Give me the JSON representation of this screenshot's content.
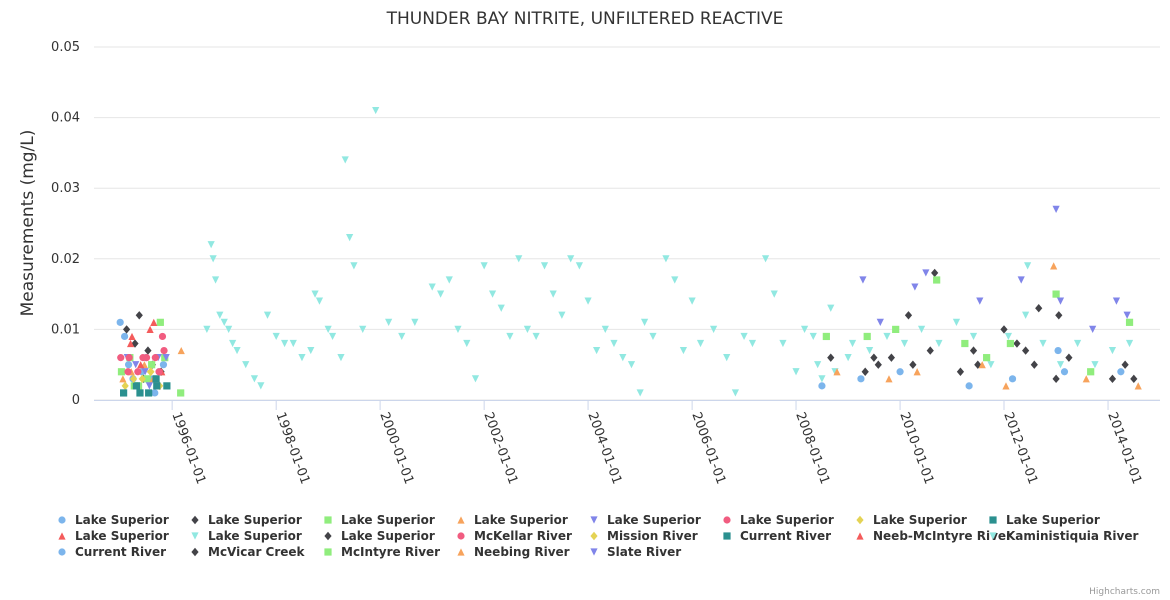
{
  "chart_data": {
    "type": "scatter",
    "title": "THUNDER BAY NITRITE, UNFILTERED REACTIVE",
    "ylabel": "Measurements (mg/L)",
    "xlabel": "",
    "ylim": [
      0,
      0.05
    ],
    "xlim": [
      "1994-07-01",
      "2015-01-01"
    ],
    "yticks": [
      "0",
      "0.01",
      "0.02",
      "0.03",
      "0.04",
      "0.05"
    ],
    "yticks_values": [
      0,
      0.01,
      0.02,
      0.03,
      0.04,
      0.05
    ],
    "xticks": [
      "1996-01-01",
      "1998-01-01",
      "2000-01-01",
      "2002-01-01",
      "2004-01-01",
      "2006-01-01",
      "2008-01-01",
      "2010-01-01",
      "2012-01-01",
      "2014-01-01"
    ],
    "grid": true,
    "legend_position": "bottom",
    "credit": "Highcharts.com",
    "series": [
      {
        "name": "Lake Superior",
        "color": "#7cb5ec",
        "marker": "circle",
        "points": [
          [
            "1995-01-01",
            0.011
          ],
          [
            "1995-02-01",
            0.009
          ],
          [
            "1995-03-01",
            0.005
          ],
          [
            "1995-04-01",
            0.003
          ],
          [
            "1995-05-01",
            0.002
          ],
          [
            "1995-06-01",
            0.004
          ],
          [
            "1995-07-01",
            0.006
          ],
          [
            "1995-08-01",
            0.003
          ],
          [
            "1995-09-01",
            0.001
          ],
          [
            "1995-10-01",
            0.004
          ],
          [
            "1995-11-01",
            0.005
          ]
        ]
      },
      {
        "name": "Lake Superior",
        "color": "#434348",
        "marker": "diamond",
        "points": [
          [
            "1995-02-15",
            0.01
          ],
          [
            "1995-04-15",
            0.008
          ],
          [
            "1995-05-15",
            0.012
          ],
          [
            "1995-07-15",
            0.007
          ],
          [
            "1995-08-15",
            0.005
          ],
          [
            "1995-10-15",
            0.004
          ],
          [
            "1995-06-15",
            0.003
          ]
        ]
      },
      {
        "name": "Lake Superior",
        "color": "#90ed7d",
        "marker": "square",
        "points": [
          [
            "1995-01-10",
            0.004
          ],
          [
            "1995-03-10",
            0.006
          ],
          [
            "1995-05-10",
            0.002
          ],
          [
            "1995-07-10",
            0.003
          ],
          [
            "1995-08-10",
            0.005
          ],
          [
            "1995-10-10",
            0.011
          ],
          [
            "1995-11-10",
            0.006
          ],
          [
            "1996-03-01",
            0.001
          ],
          [
            "1995-04-10",
            0.002
          ]
        ]
      },
      {
        "name": "Lake Superior",
        "color": "#f7a35c",
        "marker": "triangle",
        "points": [
          [
            "1995-01-20",
            0.003
          ],
          [
            "1995-03-20",
            0.004
          ],
          [
            "1995-06-20",
            0.005
          ],
          [
            "1995-09-20",
            0.002
          ],
          [
            "1996-03-05",
            0.007
          ],
          [
            "1995-08-20",
            0.003
          ]
        ]
      },
      {
        "name": "Lake Superior",
        "color": "#8085e9",
        "marker": "triangle-down",
        "points": [
          [
            "1995-02-20",
            0.006
          ],
          [
            "1995-04-20",
            0.005
          ],
          [
            "1995-06-25",
            0.004
          ],
          [
            "1995-09-25",
            0.006
          ],
          [
            "1995-11-20",
            0.006
          ],
          [
            "1995-07-25",
            0.002
          ]
        ]
      },
      {
        "name": "Lake Superior",
        "color": "#f15c80",
        "marker": "circle",
        "points": [
          [
            "1995-01-05",
            0.006
          ],
          [
            "1995-03-05",
            0.006
          ],
          [
            "1995-05-05",
            0.004
          ],
          [
            "1995-07-05",
            0.006
          ],
          [
            "1995-09-05",
            0.006
          ],
          [
            "1995-11-05",
            0.007
          ],
          [
            "1995-10-25",
            0.009
          ]
        ]
      },
      {
        "name": "Lake Superior",
        "color": "#e4d354",
        "marker": "diamond",
        "points": [
          [
            "1995-02-05",
            0.002
          ],
          [
            "1995-06-05",
            0.003
          ],
          [
            "1995-08-05",
            0.004
          ],
          [
            "1995-10-05",
            0.002
          ]
        ]
      },
      {
        "name": "Lake Superior",
        "color": "#2b908f",
        "marker": "square",
        "points": [
          [
            "1995-01-25",
            0.001
          ],
          [
            "1995-04-25",
            0.002
          ],
          [
            "1995-07-20",
            0.001
          ],
          [
            "1995-09-10",
            0.003
          ],
          [
            "1995-11-25",
            0.002
          ]
        ]
      },
      {
        "name": "Lake Superior",
        "color": "#f45b5b",
        "marker": "triangle",
        "points": [
          [
            "1995-03-25",
            0.009
          ],
          [
            "1995-05-25",
            0.005
          ],
          [
            "1995-08-25",
            0.011
          ],
          [
            "1995-10-20",
            0.004
          ]
        ]
      },
      {
        "name": "Lake Superior",
        "color": "#91e8e1",
        "marker": "triangle-down",
        "points": [
          [
            "1996-09-01",
            0.01
          ],
          [
            "1996-10-01",
            0.022
          ],
          [
            "1996-10-15",
            0.02
          ],
          [
            "1996-11-01",
            0.017
          ],
          [
            "1996-12-01",
            0.012
          ],
          [
            "1997-01-01",
            0.011
          ],
          [
            "1997-02-01",
            0.01
          ],
          [
            "1997-03-01",
            0.008
          ],
          [
            "1997-04-01",
            0.007
          ],
          [
            "1997-06-01",
            0.005
          ],
          [
            "1997-08-01",
            0.003
          ],
          [
            "1997-09-15",
            0.002
          ],
          [
            "1997-11-01",
            0.012
          ],
          [
            "1998-01-01",
            0.009
          ],
          [
            "1998-03-01",
            0.008
          ],
          [
            "1998-05-01",
            0.008
          ],
          [
            "1998-07-01",
            0.006
          ],
          [
            "1998-09-01",
            0.007
          ],
          [
            "1998-10-01",
            0.015
          ],
          [
            "1998-11-01",
            0.014
          ],
          [
            "1999-01-01",
            0.01
          ],
          [
            "1999-02-01",
            0.009
          ],
          [
            "1999-04-01",
            0.006
          ],
          [
            "1999-05-01",
            0.034
          ],
          [
            "1999-06-01",
            0.023
          ],
          [
            "1999-07-01",
            0.019
          ],
          [
            "1999-09-01",
            0.01
          ],
          [
            "1999-12-01",
            0.041
          ],
          [
            "2000-03-01",
            0.011
          ],
          [
            "2000-06-01",
            0.009
          ],
          [
            "2000-09-01",
            0.011
          ],
          [
            "2001-01-01",
            0.016
          ],
          [
            "2001-03-01",
            0.015
          ],
          [
            "2001-05-01",
            0.017
          ],
          [
            "2001-07-01",
            0.01
          ],
          [
            "2001-09-01",
            0.008
          ],
          [
            "2001-11-01",
            0.003
          ],
          [
            "2002-01-01",
            0.019
          ],
          [
            "2002-03-01",
            0.015
          ],
          [
            "2002-05-01",
            0.013
          ],
          [
            "2002-07-01",
            0.009
          ],
          [
            "2002-09-01",
            0.02
          ],
          [
            "2002-11-01",
            0.01
          ],
          [
            "2003-01-01",
            0.009
          ],
          [
            "2003-03-01",
            0.019
          ],
          [
            "2003-05-01",
            0.015
          ],
          [
            "2003-07-01",
            0.012
          ],
          [
            "2003-09-01",
            0.02
          ],
          [
            "2003-11-01",
            0.019
          ],
          [
            "2004-01-01",
            0.014
          ],
          [
            "2004-03-01",
            0.007
          ],
          [
            "2004-05-01",
            0.01
          ],
          [
            "2004-07-01",
            0.008
          ],
          [
            "2004-09-01",
            0.006
          ],
          [
            "2004-11-01",
            0.005
          ],
          [
            "2005-01-01",
            0.001
          ],
          [
            "2005-02-01",
            0.011
          ],
          [
            "2005-04-01",
            0.009
          ],
          [
            "2005-07-01",
            0.02
          ],
          [
            "2005-09-01",
            0.017
          ],
          [
            "2005-11-01",
            0.007
          ],
          [
            "2006-01-01",
            0.014
          ],
          [
            "2006-03-01",
            0.008
          ],
          [
            "2006-06-01",
            0.01
          ],
          [
            "2006-09-01",
            0.006
          ],
          [
            "2006-11-01",
            0.001
          ],
          [
            "2007-01-01",
            0.009
          ],
          [
            "2007-03-01",
            0.008
          ],
          [
            "2007-06-01",
            0.02
          ],
          [
            "2007-08-01",
            0.015
          ],
          [
            "2007-10-01",
            0.008
          ],
          [
            "2008-01-01",
            0.004
          ],
          [
            "2008-03-01",
            0.01
          ],
          [
            "2008-05-01",
            0.009
          ],
          [
            "2008-07-01",
            0.003
          ],
          [
            "2008-09-01",
            0.013
          ],
          [
            "2009-01-01",
            0.006
          ]
        ]
      },
      {
        "name": "Lake Superior",
        "color": "#434348",
        "marker": "diamond",
        "points": [
          [
            "2009-05-01",
            0.004
          ],
          [
            "2009-08-01",
            0.005
          ],
          [
            "2009-11-01",
            0.006
          ],
          [
            "2010-04-01",
            0.005
          ],
          [
            "2010-08-01",
            0.007
          ],
          [
            "2011-03-01",
            0.004
          ],
          [
            "2011-06-01",
            0.007
          ],
          [
            "2012-01-01",
            0.01
          ],
          [
            "2012-04-01",
            0.008
          ],
          [
            "2012-08-01",
            0.005
          ],
          [
            "2013-01-01",
            0.003
          ],
          [
            "2013-04-01",
            0.006
          ],
          [
            "2014-02-01",
            0.003
          ],
          [
            "2014-07-01",
            0.003
          ],
          [
            "2010-09-01",
            0.018
          ],
          [
            "2012-09-01",
            0.013
          ]
        ]
      },
      {
        "name": "McKellar River",
        "color": "#f15c80",
        "marker": "circle",
        "points": [
          [
            "1995-02-25",
            0.004
          ],
          [
            "1995-06-10",
            0.006
          ],
          [
            "1995-10-01",
            0.004
          ]
        ]
      },
      {
        "name": "Mission River",
        "color": "#e4d354",
        "marker": "diamond",
        "points": [
          [
            "1995-04-05",
            0.003
          ],
          [
            "1995-08-01",
            0.004
          ]
        ]
      },
      {
        "name": "Current River",
        "color": "#2b908f",
        "marker": "square",
        "points": [
          [
            "1995-05-20",
            0.001
          ],
          [
            "1995-09-15",
            0.002
          ]
        ]
      },
      {
        "name": "Neeb-McIntyre River",
        "color": "#f45b5b",
        "marker": "triangle",
        "points": [
          [
            "1995-03-15",
            0.008
          ],
          [
            "1995-07-30",
            0.01
          ]
        ]
      },
      {
        "name": "Kaministiquia River",
        "color": "#91e8e1",
        "marker": "triangle-down",
        "points": [
          [
            "2008-06-01",
            0.005
          ],
          [
            "2008-10-01",
            0.004
          ],
          [
            "2009-02-01",
            0.008
          ],
          [
            "2009-06-01",
            0.007
          ],
          [
            "2009-10-01",
            0.009
          ],
          [
            "2010-02-01",
            0.008
          ],
          [
            "2010-06-01",
            0.01
          ],
          [
            "2010-10-01",
            0.008
          ],
          [
            "2011-02-01",
            0.011
          ],
          [
            "2011-06-01",
            0.009
          ],
          [
            "2011-10-01",
            0.005
          ],
          [
            "2012-02-01",
            0.009
          ],
          [
            "2012-06-01",
            0.012
          ],
          [
            "2012-10-01",
            0.008
          ],
          [
            "2013-02-01",
            0.005
          ],
          [
            "2013-06-01",
            0.008
          ],
          [
            "2013-10-01",
            0.005
          ],
          [
            "2014-02-01",
            0.007
          ],
          [
            "2014-06-01",
            0.008
          ],
          [
            "2012-06-15",
            0.019
          ]
        ]
      },
      {
        "name": "Current River",
        "color": "#7cb5ec",
        "marker": "circle",
        "points": [
          [
            "2008-07-01",
            0.002
          ],
          [
            "2009-04-01",
            0.003
          ],
          [
            "2010-01-01",
            0.004
          ],
          [
            "2011-05-01",
            0.002
          ],
          [
            "2012-03-01",
            0.003
          ],
          [
            "2013-03-01",
            0.004
          ],
          [
            "2014-04-01",
            0.004
          ],
          [
            "2013-01-15",
            0.007
          ]
        ]
      },
      {
        "name": "McVicar Creek",
        "color": "#434348",
        "marker": "diamond",
        "points": [
          [
            "2008-09-01",
            0.006
          ],
          [
            "2009-07-01",
            0.006
          ],
          [
            "2010-03-01",
            0.012
          ],
          [
            "2011-07-01",
            0.005
          ],
          [
            "2012-06-01",
            0.007
          ],
          [
            "2013-01-20",
            0.012
          ],
          [
            "2014-05-01",
            0.005
          ]
        ]
      },
      {
        "name": "McIntyre River",
        "color": "#90ed7d",
        "marker": "square",
        "points": [
          [
            "2008-08-01",
            0.009
          ],
          [
            "2009-05-15",
            0.009
          ],
          [
            "2009-12-01",
            0.01
          ],
          [
            "2010-09-15",
            0.017
          ],
          [
            "2011-04-01",
            0.008
          ],
          [
            "2012-02-15",
            0.008
          ],
          [
            "2013-01-01",
            0.015
          ],
          [
            "2013-09-01",
            0.004
          ],
          [
            "2014-06-01",
            0.011
          ],
          [
            "2011-09-01",
            0.006
          ]
        ]
      },
      {
        "name": "Neebing River",
        "color": "#f7a35c",
        "marker": "triangle",
        "points": [
          [
            "2008-10-15",
            0.004
          ],
          [
            "2009-10-15",
            0.003
          ],
          [
            "2010-05-01",
            0.004
          ],
          [
            "2011-08-01",
            0.005
          ],
          [
            "2012-01-15",
            0.002
          ],
          [
            "2012-12-15",
            0.019
          ],
          [
            "2013-08-01",
            0.003
          ],
          [
            "2014-08-01",
            0.002
          ]
        ]
      },
      {
        "name": "Slate River",
        "color": "#8085e9",
        "marker": "triangle-down",
        "points": [
          [
            "2009-04-15",
            0.017
          ],
          [
            "2009-08-15",
            0.011
          ],
          [
            "2010-04-15",
            0.016
          ],
          [
            "2010-07-01",
            0.018
          ],
          [
            "2011-07-15",
            0.014
          ],
          [
            "2012-05-01",
            0.017
          ],
          [
            "2013-01-01",
            0.027
          ],
          [
            "2013-02-01",
            0.014
          ],
          [
            "2014-03-01",
            0.014
          ],
          [
            "2014-05-15",
            0.012
          ],
          [
            "2013-09-15",
            0.01
          ]
        ]
      }
    ]
  }
}
